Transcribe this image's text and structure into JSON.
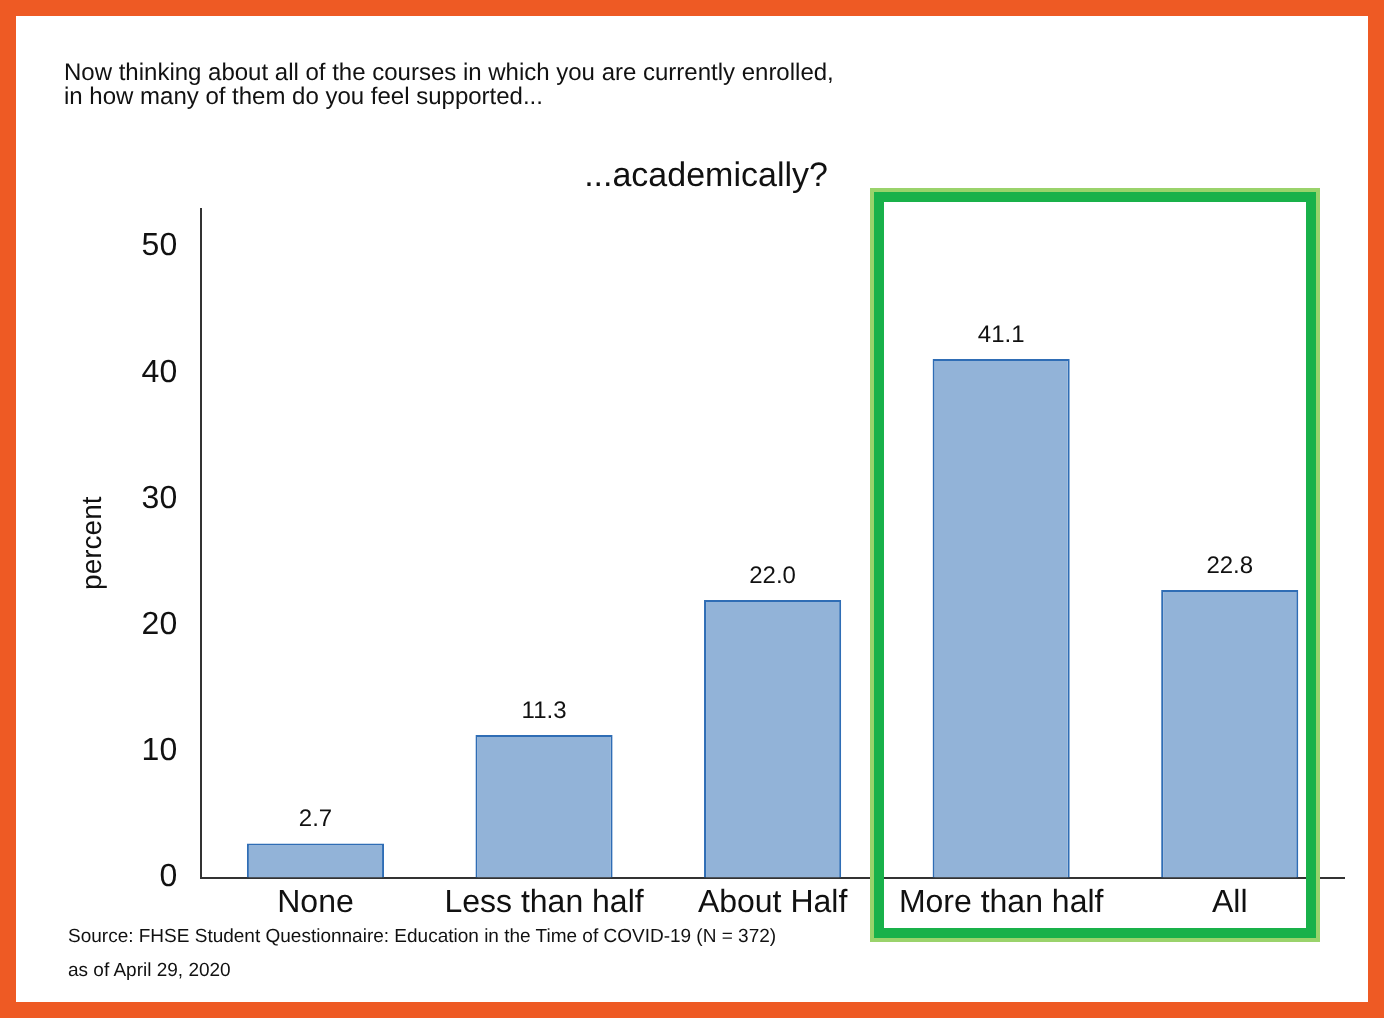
{
  "chart_data": {
    "type": "bar",
    "title": "Now thinking about all of the courses in which you are currently enrolled,\nin how many of them do you feel supported...",
    "subtitle": "...academically?",
    "ylabel": "percent",
    "categories": [
      "None",
      "Less than half",
      "About Half",
      "More than half",
      "All"
    ],
    "values": [
      2.7,
      11.3,
      22.0,
      41.1,
      22.8
    ],
    "color": "#92b3d8",
    "data_labels": true,
    "value_labels": [
      "2.7",
      "11.3",
      "22.0",
      "41.1",
      "22.8"
    ],
    "ylim": [
      0,
      53
    ],
    "yticks": [
      0,
      10,
      20,
      30,
      40,
      50
    ],
    "grid": false,
    "legend": false,
    "annotations": [
      "Source: FHSE Student Questionnaire: Education in the Time of COVID-19 (N = 372)",
      "as of April 29, 2020"
    ]
  }
}
